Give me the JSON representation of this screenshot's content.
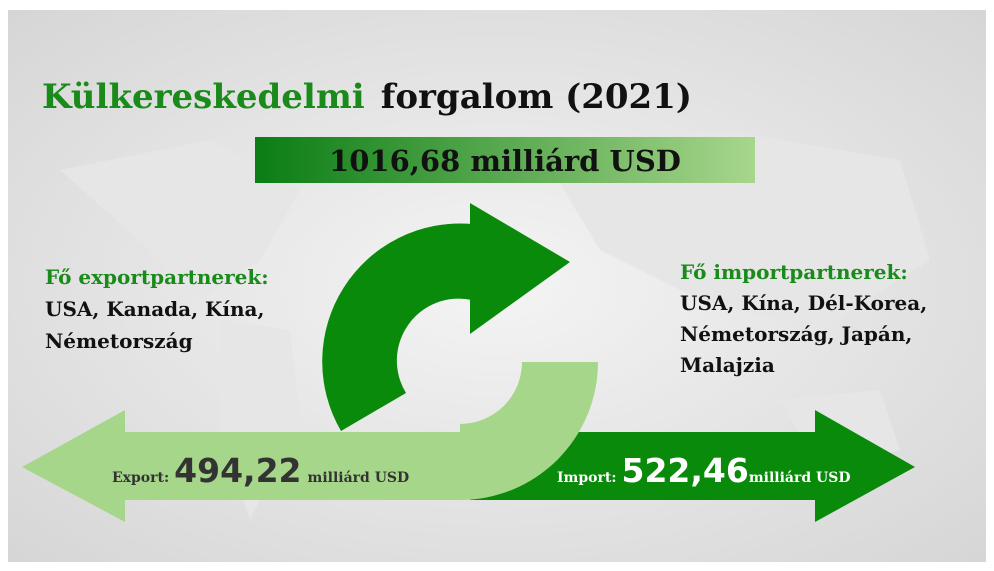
{
  "title": {
    "part1": "Külkereskedelmi",
    "part2": "forgalom (2021)"
  },
  "total": "1016,68 milliárd USD",
  "export_partners": {
    "heading": "Fő exportpartnerek:",
    "lines": [
      "USA, Kanada, Kína,",
      "Németország"
    ]
  },
  "import_partners": {
    "heading": "Fő importpartnerek:",
    "lines": [
      "USA, Kína, Dél-Korea,",
      "Németország, Japán,",
      "Malajzia"
    ]
  },
  "export": {
    "label": "Export:",
    "value": "494,22",
    "unit": "milliárd USD"
  },
  "import": {
    "label": "Import:",
    "value": "522,46",
    "unit": "milliárd USD"
  }
}
